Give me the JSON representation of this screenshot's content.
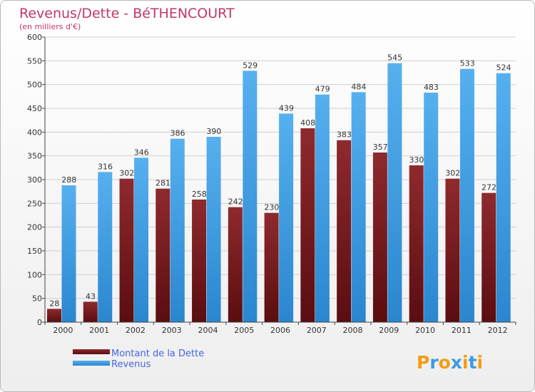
{
  "chart_data": {
    "type": "bar",
    "title": "Revenus/Dette - BéTHENCOURT",
    "subtitle": "(en milliers d'€)",
    "xlabel": "",
    "ylabel": "",
    "ylim": [
      0,
      600
    ],
    "yticks": [
      0,
      50,
      100,
      150,
      200,
      250,
      300,
      350,
      400,
      450,
      500,
      550,
      600
    ],
    "grid": true,
    "categories": [
      "2000",
      "2001",
      "2002",
      "2003",
      "2004",
      "2005",
      "2006",
      "2007",
      "2008",
      "2009",
      "2010",
      "2011",
      "2012"
    ],
    "series": [
      {
        "name": "Montant de la Dette",
        "color": "#7a1a1e",
        "values": [
          28,
          43,
          302,
          281,
          258,
          242,
          230,
          408,
          383,
          357,
          330,
          302,
          272
        ]
      },
      {
        "name": "Revenus",
        "color": "#3d9ee5",
        "values": [
          288,
          316,
          346,
          386,
          390,
          529,
          439,
          479,
          484,
          545,
          483,
          533,
          524
        ]
      }
    ],
    "legend_position": "bottom-left"
  },
  "brand": {
    "text": "Proxiti",
    "letters": [
      "P",
      "r",
      "o",
      "x",
      "i",
      "t",
      "i"
    ],
    "colors": [
      "#f39c12",
      "#3b9be0",
      "#f39c12",
      "#3b9be0",
      "#f39c12",
      "#3b9be0",
      "#f39c12"
    ]
  }
}
